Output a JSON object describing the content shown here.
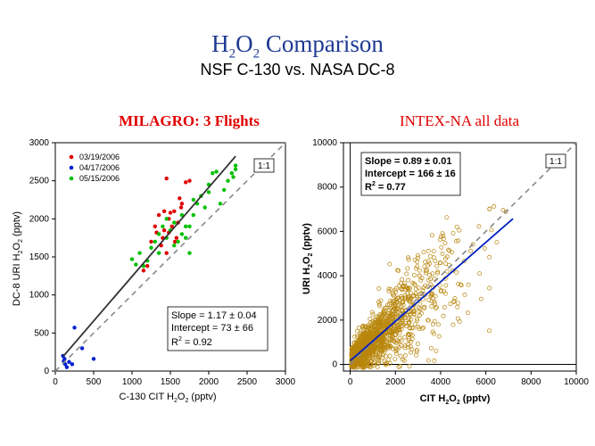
{
  "header": {
    "title_h": "H",
    "title_sub1": "2",
    "title_o": "O",
    "title_sub2": "2",
    "title_rest": " Comparison",
    "subtitle": "NSF C-130 vs. NASA DC-8"
  },
  "colors": {
    "title": "#1f3a93",
    "panel_title": "#e00000",
    "series_0319": "#e00000",
    "series_0417": "#0020d0",
    "series_0515": "#00c000",
    "scatter_right": "#b8860b",
    "fit_left": "#333333",
    "fit_right": "#0020c0",
    "one_to_one": "#888888"
  },
  "chart_data": [
    {
      "type": "scatter",
      "title": "MILAGRO: 3 Flights",
      "xlabel": "C-130 CIT H2O2 (pptv)",
      "ylabel": "DC-8 URI H2O2 (pptv)",
      "xlim": [
        0,
        3000
      ],
      "ylim": [
        0,
        3000
      ],
      "xticks": [
        "0",
        "500",
        "1000",
        "1500",
        "2000",
        "2500",
        "3000"
      ],
      "yticks": [
        "0",
        "500",
        "1000",
        "1500",
        "2000",
        "2500",
        "3000"
      ],
      "one_to_one_label": "1:1",
      "fit": {
        "slope": 1.17,
        "intercept": 73,
        "x_range": [
          100,
          2350
        ]
      },
      "stats": {
        "slope": "Slope = 1.17 ± 0.04",
        "intercept": "Intercept = 73 ± 66",
        "r2_prefix": "R",
        "r2_sup": "2",
        "r2_value": " = 0.92"
      },
      "series": [
        {
          "name": "03/19/2006",
          "color": "#e00000",
          "points": [
            [
              1150,
              1320
            ],
            [
              1200,
              1380
            ],
            [
              1250,
              1700
            ],
            [
              1300,
              1900
            ],
            [
              1320,
              1820
            ],
            [
              1350,
              2050
            ],
            [
              1380,
              1650
            ],
            [
              1400,
              1750
            ],
            [
              1420,
              1850
            ],
            [
              1450,
              1550
            ],
            [
              1450,
              2530
            ],
            [
              1480,
              2000
            ],
            [
              1500,
              2080
            ],
            [
              1520,
              1900
            ],
            [
              1550,
              2100
            ],
            [
              1580,
              1750
            ],
            [
              1600,
              1950
            ],
            [
              1620,
              2270
            ],
            [
              1650,
              2200
            ],
            [
              1700,
              2480
            ],
            [
              1750,
              2500
            ],
            [
              1420,
              2100
            ],
            [
              1480,
              1820
            ],
            [
              1560,
              1700
            ],
            [
              1640,
              2150
            ]
          ]
        },
        {
          "name": "04/17/2006",
          "color": "#0020d0",
          "points": [
            [
              100,
              200
            ],
            [
              110,
              130
            ],
            [
              130,
              90
            ],
            [
              150,
              50
            ],
            [
              180,
              120
            ],
            [
              250,
              570
            ],
            [
              350,
              300
            ],
            [
              500,
              160
            ],
            [
              120,
              160
            ],
            [
              220,
              90
            ]
          ]
        },
        {
          "name": "05/15/2006",
          "color": "#00c000",
          "points": [
            [
              1000,
              1470
            ],
            [
              1050,
              1400
            ],
            [
              1100,
              1550
            ],
            [
              1150,
              1380
            ],
            [
              1200,
              1450
            ],
            [
              1250,
              1620
            ],
            [
              1300,
              1700
            ],
            [
              1350,
              1800
            ],
            [
              1400,
              1900
            ],
            [
              1450,
              2000
            ],
            [
              1500,
              1850
            ],
            [
              1550,
              1950
            ],
            [
              1600,
              1700
            ],
            [
              1650,
              1800
            ],
            [
              1700,
              1750
            ],
            [
              1750,
              1900
            ],
            [
              1800,
              2050
            ],
            [
              1850,
              2200
            ],
            [
              1900,
              2300
            ],
            [
              2000,
              2450
            ],
            [
              2050,
              2600
            ],
            [
              2100,
              2620
            ],
            [
              2200,
              2380
            ],
            [
              2250,
              2500
            ],
            [
              2300,
              2600
            ],
            [
              2350,
              2650
            ],
            [
              2350,
              2700
            ],
            [
              2320,
              2550
            ],
            [
              2000,
              2350
            ],
            [
              1800,
              2250
            ],
            [
              1700,
              1900
            ],
            [
              1650,
              2050
            ],
            [
              1550,
              1650
            ],
            [
              1450,
              1750
            ],
            [
              1350,
              1550
            ],
            [
              1950,
              2150
            ],
            [
              1750,
              1550
            ],
            [
              2150,
              2200
            ]
          ]
        }
      ]
    },
    {
      "type": "scatter",
      "title": "INTEX-NA all data",
      "xlabel_prefix": "CIT H",
      "xlabel_sub": "2",
      "xlabel_o": "O",
      "xlabel_sub2": "2",
      "xlabel_suffix": "  (pptv)",
      "ylabel": "URI H2O2  (pptv)",
      "xlim": [
        -300,
        10000
      ],
      "ylim": [
        -300,
        10000
      ],
      "xticks": [
        "0",
        "2000",
        "4000",
        "6000",
        "8000",
        "10000"
      ],
      "yticks": [
        "0",
        "2000",
        "4000",
        "6000",
        "8000",
        "10000"
      ],
      "one_to_one_label": "1:1",
      "fit": {
        "slope": 0.89,
        "intercept": 166,
        "x_range": [
          0,
          7200
        ]
      },
      "stats": {
        "slope": "Slope = 0.89 ± 0.01",
        "intercept": "Intercept = 166 ± 16",
        "r2_prefix": "R",
        "r2_sup": "2",
        "r2_value": " = 0.77"
      },
      "n_points": 1500,
      "point_color": "#b8860b"
    }
  ]
}
